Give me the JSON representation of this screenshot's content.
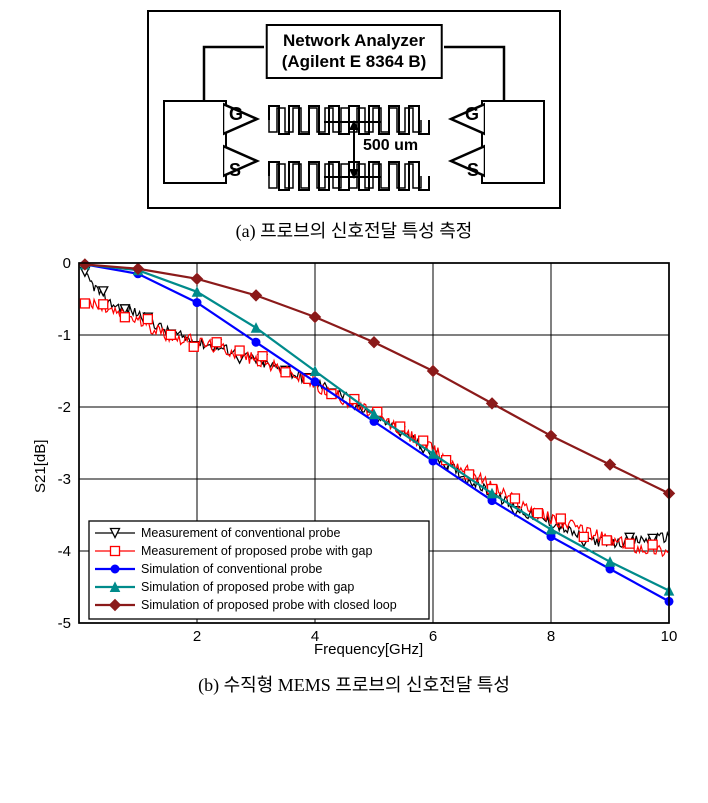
{
  "figure_a": {
    "analyzer_line1": "Network Analyzer",
    "analyzer_line2": "(Agilent E 8364 B)",
    "dimension": "500 um",
    "labels": {
      "G": "G",
      "S": "S"
    },
    "caption": "(a) 프로브의 신호전달 특성 측정"
  },
  "figure_b": {
    "caption": "(b) 수직형 MEMS 프로브의 신호전달 특성",
    "chart": {
      "type": "line",
      "xlabel": "Frequency[GHz]",
      "ylabel": "S21[dB]",
      "xlim": [
        0,
        10
      ],
      "ylim": [
        -5,
        0
      ],
      "xtick_step": 2,
      "ytick_step": 1,
      "xticks": [
        2,
        4,
        6,
        8,
        10
      ],
      "yticks": [
        0,
        -1,
        -2,
        -3,
        -4,
        -5
      ],
      "background_color": "#ffffff",
      "grid_color": "#000000",
      "label_fontsize": 15,
      "tick_fontsize": 15,
      "legend_fontsize": 12.5,
      "series": [
        {
          "name": "Measurement of conventional probe",
          "color": "#000000",
          "line_width": 1.2,
          "marker": "triangle-down-open",
          "marker_color": "#000000",
          "type": "noisy",
          "data_env": [
            [
              0.1,
              -0.18
            ],
            [
              0.5,
              -0.55
            ],
            [
              1,
              -0.7
            ],
            [
              1.5,
              -0.95
            ],
            [
              2,
              -1.1
            ],
            [
              2.5,
              -1.2
            ],
            [
              3,
              -1.35
            ],
            [
              3.5,
              -1.5
            ],
            [
              4,
              -1.65
            ],
            [
              4.5,
              -1.85
            ],
            [
              5,
              -2.1
            ],
            [
              5.5,
              -2.35
            ],
            [
              6,
              -2.65
            ],
            [
              6.5,
              -2.95
            ],
            [
              7,
              -3.2
            ],
            [
              7.5,
              -3.45
            ],
            [
              8,
              -3.6
            ],
            [
              8.5,
              -3.8
            ],
            [
              9,
              -3.9
            ],
            [
              9.5,
              -3.85
            ],
            [
              10,
              -3.8
            ]
          ],
          "noise_amp": 0.15
        },
        {
          "name": "Measurement of proposed probe with gap",
          "color": "#ff0000",
          "line_width": 1.2,
          "marker": "square-open",
          "marker_color": "#ff0000",
          "type": "noisy",
          "data_env": [
            [
              0.1,
              -0.55
            ],
            [
              0.5,
              -0.65
            ],
            [
              1,
              -0.8
            ],
            [
              1.5,
              -1.0
            ],
            [
              2,
              -1.1
            ],
            [
              2.5,
              -1.2
            ],
            [
              3,
              -1.35
            ],
            [
              3.5,
              -1.5
            ],
            [
              4,
              -1.7
            ],
            [
              4.5,
              -1.9
            ],
            [
              5,
              -2.1
            ],
            [
              5.5,
              -2.35
            ],
            [
              6,
              -2.6
            ],
            [
              6.5,
              -2.85
            ],
            [
              7,
              -3.1
            ],
            [
              7.5,
              -3.35
            ],
            [
              8,
              -3.55
            ],
            [
              8.5,
              -3.7
            ],
            [
              9,
              -3.85
            ],
            [
              9.5,
              -3.95
            ],
            [
              10,
              -4.0
            ]
          ],
          "noise_amp": 0.18
        },
        {
          "name": "Simulation of conventional probe",
          "color": "#0000ff",
          "line_width": 2.2,
          "marker": "circle-filled",
          "marker_color": "#0000ff",
          "type": "smooth",
          "data": [
            [
              0.1,
              -0.02
            ],
            [
              1,
              -0.15
            ],
            [
              2,
              -0.55
            ],
            [
              3,
              -1.1
            ],
            [
              4,
              -1.65
            ],
            [
              5,
              -2.2
            ],
            [
              6,
              -2.75
            ],
            [
              7,
              -3.3
            ],
            [
              8,
              -3.8
            ],
            [
              9,
              -4.25
            ],
            [
              10,
              -4.7
            ]
          ]
        },
        {
          "name": "Simulation of proposed probe with gap",
          "color": "#008b8b",
          "line_width": 2.2,
          "marker": "triangle-up-filled",
          "marker_color": "#008b8b",
          "type": "smooth",
          "data": [
            [
              0.1,
              -0.02
            ],
            [
              1,
              -0.1
            ],
            [
              2,
              -0.4
            ],
            [
              3,
              -0.9
            ],
            [
              4,
              -1.5
            ],
            [
              5,
              -2.1
            ],
            [
              6,
              -2.65
            ],
            [
              7,
              -3.2
            ],
            [
              8,
              -3.7
            ],
            [
              9,
              -4.15
            ],
            [
              10,
              -4.55
            ]
          ]
        },
        {
          "name": "Simulation of proposed probe with closed loop",
          "color": "#8b1a1a",
          "line_width": 2.2,
          "marker": "diamond-filled",
          "marker_color": "#8b1a1a",
          "type": "smooth",
          "data": [
            [
              0.1,
              -0.02
            ],
            [
              1,
              -0.08
            ],
            [
              2,
              -0.22
            ],
            [
              3,
              -0.45
            ],
            [
              4,
              -0.75
            ],
            [
              5,
              -1.1
            ],
            [
              6,
              -1.5
            ],
            [
              7,
              -1.95
            ],
            [
              8,
              -2.4
            ],
            [
              9,
              -2.8
            ],
            [
              10,
              -3.2
            ]
          ]
        }
      ]
    }
  }
}
